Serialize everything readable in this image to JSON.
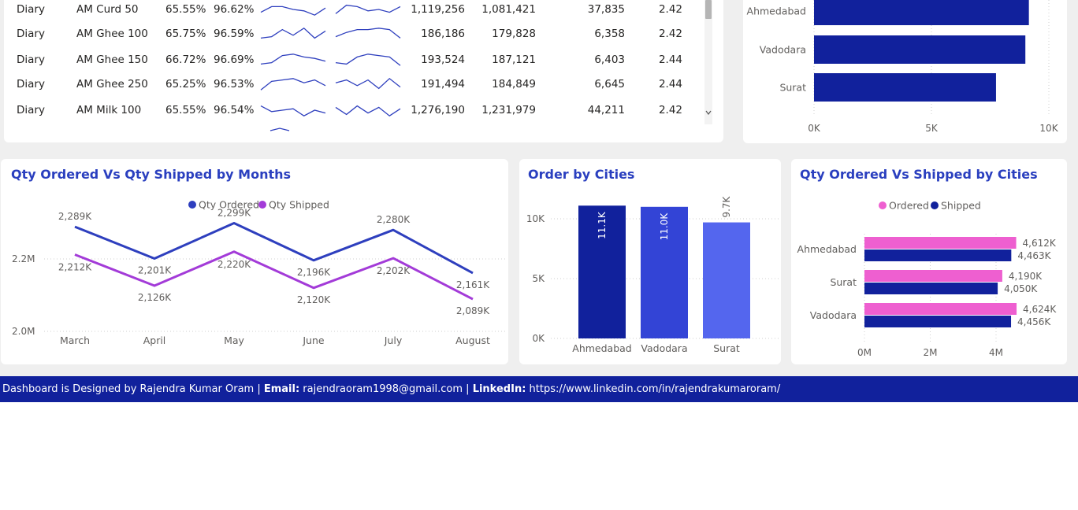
{
  "table": {
    "rows": [
      {
        "category": "Diary",
        "product": "AM Curd 50",
        "pct1": "65.55%",
        "pct2": "96.62%",
        "ordered": "1,119,256",
        "shipped": "1,081,421",
        "orders": "37,835",
        "avg": "2.42",
        "spark1": [
          0.7,
          0.3,
          0.3,
          0.5,
          0.6,
          0.9,
          0.4
        ],
        "spark2": [
          0.8,
          0.2,
          0.3,
          0.6,
          0.5,
          0.7,
          0.3
        ]
      },
      {
        "category": "Diary",
        "product": "AM Ghee 100",
        "pct1": "65.75%",
        "pct2": "96.59%",
        "ordered": "186,186",
        "shipped": "179,828",
        "orders": "6,358",
        "avg": "2.42",
        "spark1": [
          0.8,
          0.7,
          0.2,
          0.6,
          0.1,
          0.8,
          0.3
        ],
        "spark2": [
          0.7,
          0.4,
          0.2,
          0.2,
          0.1,
          0.2,
          0.8
        ]
      },
      {
        "category": "Diary",
        "product": "AM Ghee 150",
        "pct1": "66.72%",
        "pct2": "96.69%",
        "ordered": "193,524",
        "shipped": "187,121",
        "orders": "6,403",
        "avg": "2.44",
        "spark1": [
          0.8,
          0.7,
          0.2,
          0.1,
          0.3,
          0.4,
          0.6
        ],
        "spark2": [
          0.7,
          0.8,
          0.3,
          0.1,
          0.2,
          0.3,
          0.9
        ]
      },
      {
        "category": "Diary",
        "product": "AM Ghee 250",
        "pct1": "65.25%",
        "pct2": "96.53%",
        "ordered": "191,494",
        "shipped": "184,849",
        "orders": "6,645",
        "avg": "2.44",
        "spark1": [
          0.9,
          0.3,
          0.2,
          0.1,
          0.4,
          0.2,
          0.6
        ],
        "spark2": [
          0.4,
          0.2,
          0.6,
          0.2,
          0.8,
          0.1,
          0.7
        ]
      },
      {
        "category": "Diary",
        "product": "AM Milk 100",
        "pct1": "65.55%",
        "pct2": "96.54%",
        "ordered": "1,276,190",
        "shipped": "1,231,979",
        "orders": "44,211",
        "avg": "2.42",
        "spark1": [
          0.2,
          0.6,
          0.5,
          0.4,
          0.9,
          0.5,
          0.7
        ],
        "spark2": [
          0.3,
          0.8,
          0.2,
          0.7,
          0.3,
          0.9,
          0.4
        ]
      }
    ]
  },
  "top_cities": {
    "chart_data": {
      "type": "bar",
      "orientation": "horizontal",
      "categories": [
        "Ahmedabad",
        "Vadodara",
        "Surat"
      ],
      "values": [
        9150,
        9000,
        7750
      ],
      "xlim": [
        0,
        10000
      ],
      "xticks": [
        "0K",
        "5K",
        "10K"
      ],
      "color": "#11219c"
    }
  },
  "months_chart": {
    "title": "Qty Ordered Vs Qty Shipped by Months",
    "legend": [
      "Qty Ordered",
      "Qty Shipped"
    ],
    "yticks": [
      "2.2M",
      "2.0M"
    ],
    "chart_data": {
      "type": "line",
      "categories": [
        "March",
        "April",
        "May",
        "June",
        "July",
        "August"
      ],
      "ylim": [
        2000,
        2420
      ],
      "series": [
        {
          "name": "Qty Ordered",
          "values": [
            2289,
            2201,
            2299,
            2196,
            2280,
            2161
          ],
          "labels": [
            "2,289K",
            "2,201K",
            "2,299K",
            "2,196K",
            "2,280K",
            "2,161K"
          ],
          "color": "#2e3fbe"
        },
        {
          "name": "Qty Shipped",
          "values": [
            2212,
            2126,
            2220,
            2120,
            2202,
            2089
          ],
          "labels": [
            "2,212K",
            "2,126K",
            "2,220K",
            "2,120K",
            "2,202K",
            "2,089K"
          ],
          "color": "#a33bd8"
        }
      ]
    }
  },
  "cities_chart": {
    "title": "Order by Cities",
    "yticks": [
      "10K",
      "5K",
      "0K"
    ],
    "chart_data": {
      "type": "bar",
      "categories": [
        "Ahmedabad",
        "Vadodara",
        "Surat"
      ],
      "values": [
        11100,
        11000,
        9700
      ],
      "labels": [
        "11.1K",
        "11.0K",
        "9.7K"
      ],
      "ylim": [
        0,
        11100
      ],
      "colors": [
        "#11219c",
        "#3344d6",
        "#5466ee"
      ]
    }
  },
  "shipped_cities_chart": {
    "title": "Qty Ordered Vs Shipped by Cities",
    "legend": [
      "Ordered",
      "Shipped"
    ],
    "xticks": [
      "0M",
      "2M",
      "4M"
    ],
    "chart_data": {
      "type": "bar",
      "orientation": "horizontal",
      "categories": [
        "Ahmedabad",
        "Surat",
        "Vadodara"
      ],
      "xlim": [
        0,
        5000
      ],
      "series": [
        {
          "name": "Ordered",
          "values": [
            4612,
            4190,
            4624
          ],
          "labels": [
            "4,612K",
            "4,190K",
            "4,624K"
          ],
          "color": "#ee5fd0"
        },
        {
          "name": "Shipped",
          "values": [
            4463,
            4050,
            4456
          ],
          "labels": [
            "4,463K",
            "4,050K",
            "4,456K"
          ],
          "color": "#11219c"
        }
      ]
    }
  },
  "footer": {
    "prefix": "Dashboard is Designed by Rajendra Kumar Oram | ",
    "email_label": "Email:",
    "email": " rajendraoram1998@gmail.com | ",
    "linkedin_label": "LinkedIn:",
    "linkedin": " https://www.linkedin.com/in/rajendrakumaroram/"
  }
}
